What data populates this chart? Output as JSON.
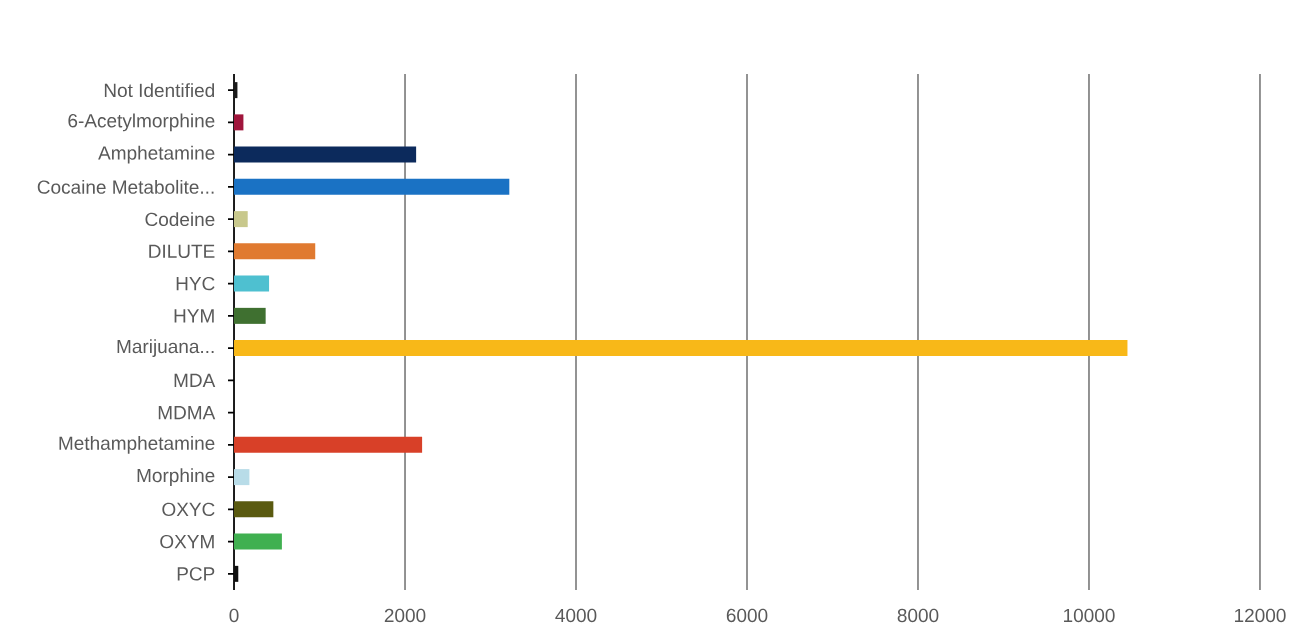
{
  "chart_data": {
    "type": "bar",
    "orientation": "horizontal",
    "categories": [
      "Not Identified",
      "6-Acetylmorphine",
      "Amphetamine",
      "Cocaine Metabolite...",
      "Codeine",
      "DILUTE",
      "HYC",
      "HYM",
      "Marijuana...",
      "MDA",
      "MDMA",
      "Methamphetamine",
      "Morphine",
      "OXYC",
      "OXYM",
      "PCP"
    ],
    "values": [
      40,
      110,
      2130,
      3220,
      160,
      950,
      410,
      370,
      10450,
      0,
      0,
      2200,
      180,
      460,
      560,
      50
    ],
    "colors": [
      "#1a1a1a",
      "#a0163c",
      "#0c2a5c",
      "#1a72c4",
      "#c8c88c",
      "#e07a30",
      "#4ec0d0",
      "#3f7030",
      "#f8b818",
      "#7f7f7f",
      "#7f7f7f",
      "#d84028",
      "#b8dce8",
      "#5a5a10",
      "#40b050",
      "#101010"
    ],
    "xlim": [
      0,
      12000
    ],
    "xticks": [
      0,
      2000,
      4000,
      6000,
      8000,
      10000,
      12000
    ],
    "grid": "x"
  }
}
